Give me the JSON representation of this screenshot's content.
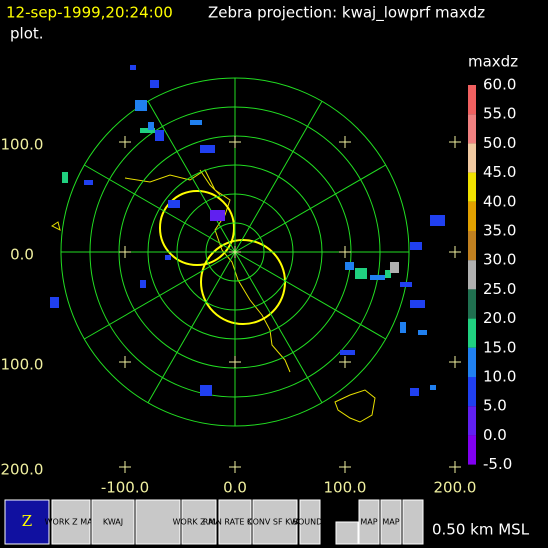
{
  "header": {
    "timestamp": "12-sep-1999,20:24:00",
    "title": "Zebra projection: kwaj_lowprf maxdz",
    "title_line2": "plot."
  },
  "colorbar": {
    "field": "maxdz",
    "labels": [
      "60.0",
      "55.0",
      "50.0",
      "45.0",
      "40.0",
      "35.0",
      "30.0",
      "25.0",
      "20.0",
      "15.0",
      "10.0",
      "5.0",
      "0.0",
      "-5.0"
    ]
  },
  "axes": {
    "x_labels": [
      "-100.0",
      "0.0",
      "100.0",
      "200.0"
    ],
    "y_labels": [
      "100.0",
      "0.0",
      "100.0",
      "200.0"
    ]
  },
  "toolbar": {
    "items": [
      "WORK Z MAP",
      "KWAJ",
      "WORK Z MAP",
      "RAIN RATE KWAJ",
      "CONV SF KWA",
      "BOUNDS",
      "MAP",
      "MAP"
    ]
  },
  "altitude": "0.50 km MSL"
}
